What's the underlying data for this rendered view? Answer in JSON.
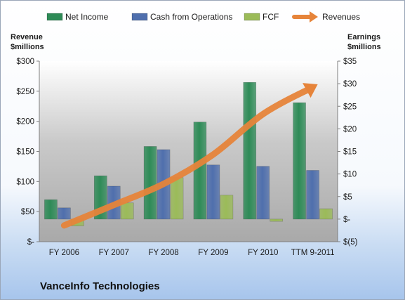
{
  "chart_data": {
    "type": "bar",
    "categories": [
      "FY 2006",
      "FY 2007",
      "FY 2008",
      "FY 2009",
      "FY 2010",
      "TTM 9-2011"
    ],
    "series": [
      {
        "name": "Net Income",
        "axis": "right",
        "color": "#2e8b57",
        "values": [
          4.3,
          9.6,
          16.1,
          21.5,
          30.3,
          25.8
        ]
      },
      {
        "name": "Cash from Operations",
        "axis": "right",
        "color": "#4f6fad",
        "values": [
          2.5,
          7.3,
          15.4,
          12.0,
          11.7,
          10.8
        ]
      },
      {
        "name": "FCF",
        "axis": "right",
        "color": "#9bbb59",
        "values": [
          -1.5,
          3.6,
          9.2,
          5.3,
          -0.5,
          2.3
        ]
      },
      {
        "name": "Revenues",
        "axis": "left",
        "color": "#e6843a",
        "type": "line",
        "values": [
          27,
          61,
          96,
          145,
          212,
          257
        ]
      }
    ],
    "left_axis": {
      "label_lines": [
        "Revenue",
        "$millions"
      ],
      "ticks": [
        "$300",
        "$250",
        "$200",
        "$150",
        "$100",
        "$50",
        "$-"
      ],
      "range": [
        0,
        300
      ]
    },
    "right_axis": {
      "label_lines": [
        "Earnings",
        "$millions"
      ],
      "ticks": [
        "$35",
        "$30",
        "$25",
        "$20",
        "$15",
        "$10",
        "$5",
        "$-",
        "$(5)"
      ],
      "range": [
        -5,
        35
      ]
    },
    "legend_position": "top",
    "grid": false
  },
  "company": "VanceInfo Technologies"
}
